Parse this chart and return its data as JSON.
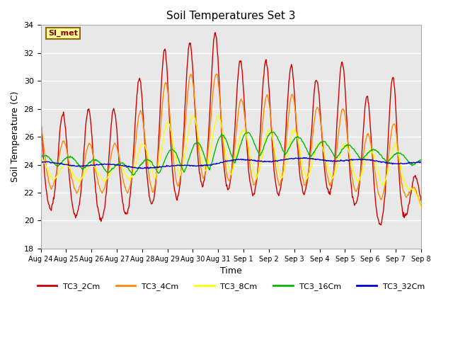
{
  "title": "Soil Temperatures Set 3",
  "xlabel": "Time",
  "ylabel": "Soil Temperature (C)",
  "ylim": [
    18,
    34
  ],
  "yticks": [
    18,
    20,
    22,
    24,
    26,
    28,
    30,
    32,
    34
  ],
  "background_color": "#e8e8e8",
  "grid_color": "white",
  "series_colors": {
    "TC3_2Cm": "#cc0000",
    "TC3_4Cm": "#ff8800",
    "TC3_8Cm": "#ffff00",
    "TC3_16Cm": "#00bb00",
    "TC3_32Cm": "#0000cc"
  },
  "legend_labels": [
    "TC3_2Cm",
    "TC3_4Cm",
    "TC3_8Cm",
    "TC3_16Cm",
    "TC3_32Cm"
  ],
  "si_met_label": "SI_met",
  "xtick_labels": [
    "Aug 24",
    "Aug 25",
    "Aug 26",
    "Aug 27",
    "Aug 28",
    "Aug 29",
    "Aug 30",
    "Aug 31",
    "Sep 1",
    "Sep 2",
    "Sep 3",
    "Sep 4",
    "Sep 5",
    "Sep 6",
    "Sep 7",
    "Sep 8"
  ],
  "n_days": 15,
  "points_per_day": 48
}
